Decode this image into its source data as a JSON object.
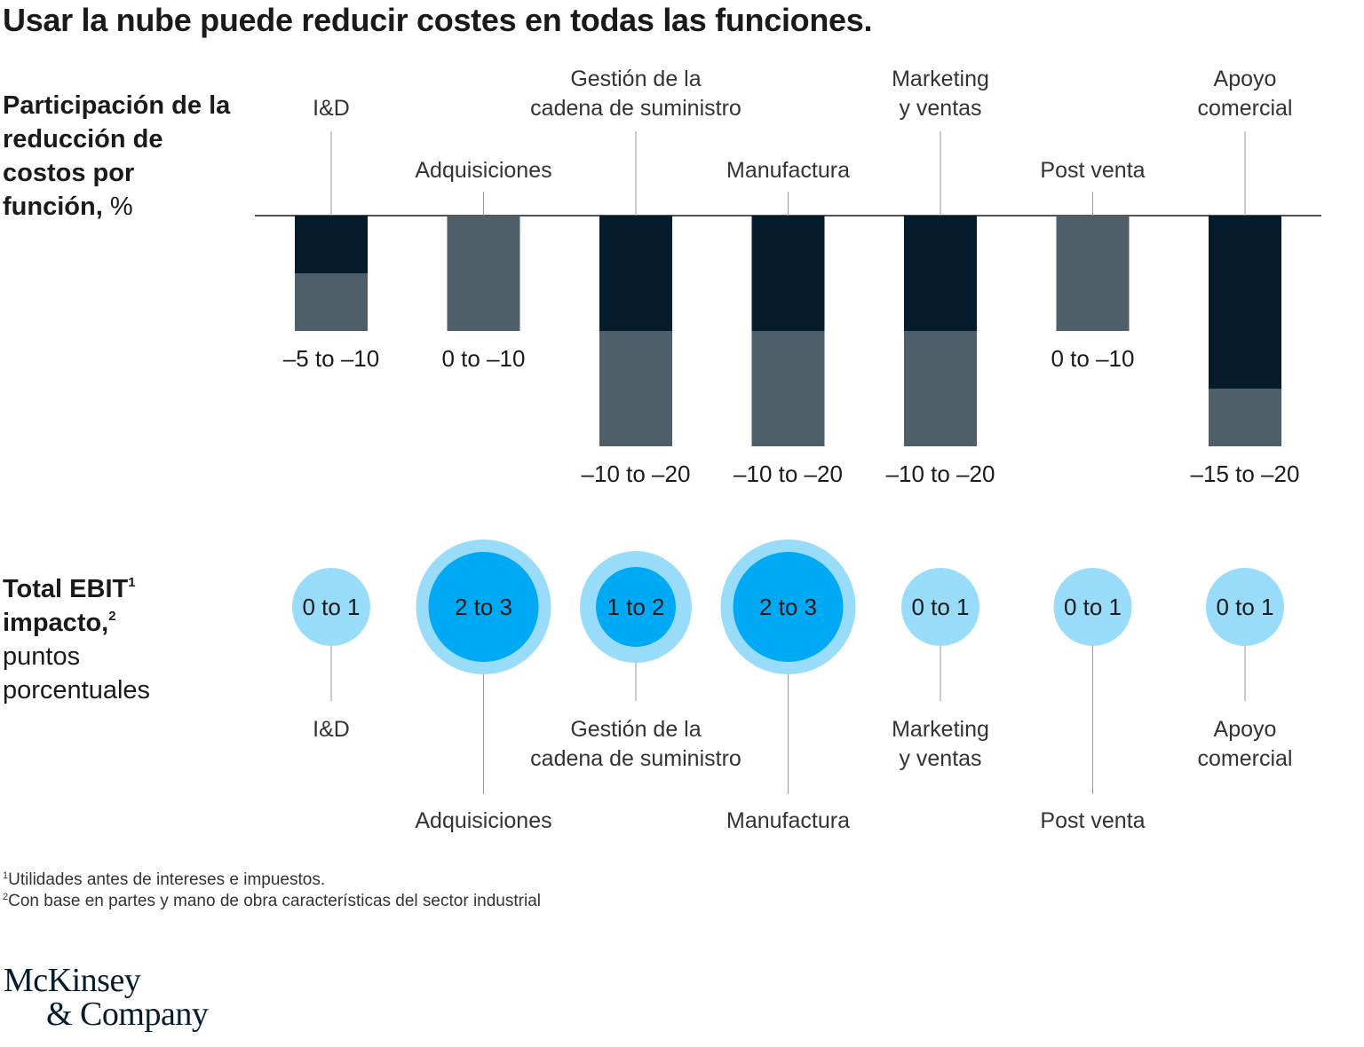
{
  "title": "Usar la nube puede reducir costes en todas las funciones.",
  "cost_section": {
    "label_bold": "Participación de la reducción de costos por función,",
    "label_unit": "%"
  },
  "ebit_section": {
    "label_bold_1": "Total EBIT",
    "label_sup_1": "1",
    "label_bold_2": "impacto,",
    "label_sup_2": "2",
    "label_rest": "puntos porcentuales"
  },
  "footnotes": {
    "f1_mark": "1",
    "f1_text": "Utilidades antes de intereses e impuestos.",
    "f2_mark": "2",
    "f2_text": "Con base en partes y mano de obra características del sector industrial"
  },
  "logo": {
    "line1": "McKinsey",
    "line2": "& Company"
  },
  "chart_data": [
    {
      "type": "bar",
      "categories": [
        "I&D",
        "Adquisiciones",
        "Gestión de la cadena de suministro",
        "Manufactura",
        "Marketing y ventas",
        "Post venta",
        "Apoyo comercial"
      ],
      "category_lines": [
        [
          "I&D"
        ],
        [
          "Adquisiciones"
        ],
        [
          "Gestión de la",
          "cadena de suministro"
        ],
        [
          "Manufactura"
        ],
        [
          "Marketing",
          "y ventas"
        ],
        [
          "Post venta"
        ],
        [
          "Apoyo",
          "comercial"
        ]
      ],
      "series": [
        {
          "values": [
            -5,
            0,
            -10,
            -10,
            -10,
            0,
            -15
          ]
        },
        {
          "values": [
            -10,
            -10,
            -20,
            -20,
            -20,
            -10,
            -20
          ]
        }
      ],
      "range_labels": [
        "–5 to –10",
        "0 to –10",
        "–10 to –20",
        "–10 to –20",
        "–10 to –20",
        "0 to –10",
        "–15 to –20"
      ],
      "ylim": [
        -20,
        0
      ],
      "colors": {
        "min": "#051c2c",
        "max": "#4f5f6a",
        "axis": "#1a1a1a",
        "leader": "#999999"
      }
    },
    {
      "type": "bubble",
      "categories": [
        "I&D",
        "Adquisiciones",
        "Gestión de la cadena de suministro",
        "Manufactura",
        "Marketing y ventas",
        "Post venta",
        "Apoyo comercial"
      ],
      "category_lines": [
        [
          "I&D"
        ],
        [
          "Adquisiciones"
        ],
        [
          "Gestión de la",
          "cadena de suministro"
        ],
        [
          "Manufactura"
        ],
        [
          "Marketing",
          "y ventas"
        ],
        [
          "Post venta"
        ],
        [
          "Apoyo",
          "comercial"
        ]
      ],
      "low": [
        0,
        2,
        1,
        2,
        0,
        0,
        0
      ],
      "high": [
        1,
        3,
        2,
        3,
        1,
        1,
        1
      ],
      "range_labels": [
        "0 to 1",
        "2 to 3",
        "1 to 2",
        "2 to 3",
        "0 to 1",
        "0 to 1",
        "0 to 1"
      ],
      "colors": {
        "low": "#00a9f4",
        "high": "#99dcf9",
        "leader": "#999999"
      }
    }
  ]
}
